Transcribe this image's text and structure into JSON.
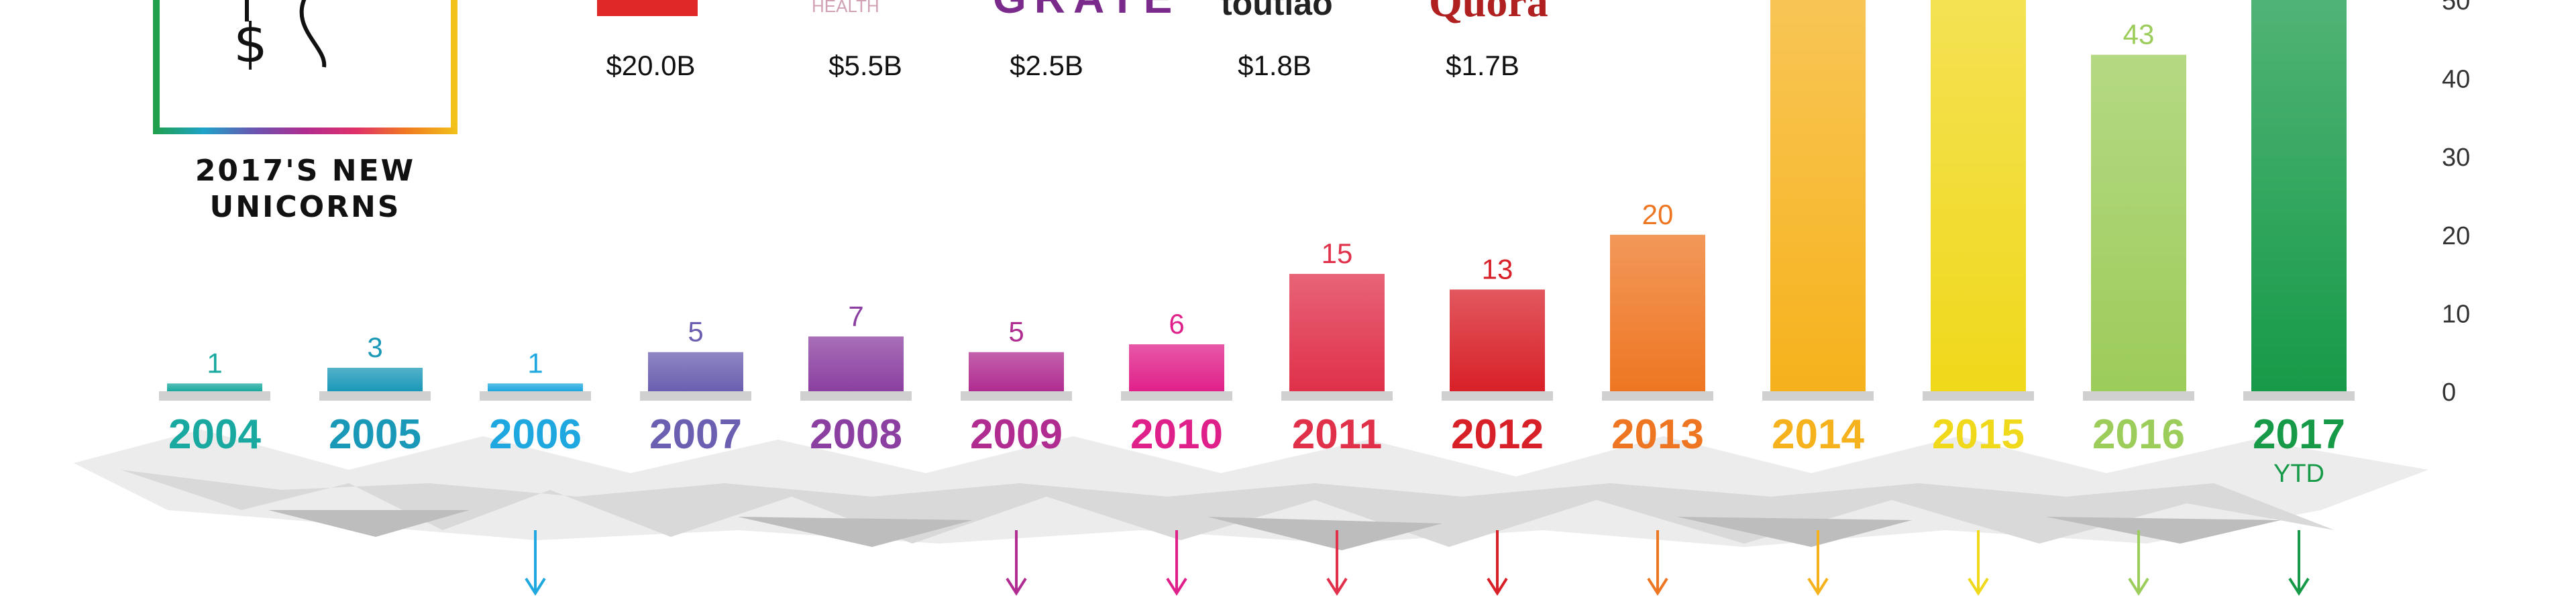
{
  "unicorns": {
    "caption_line1": "2017'S NEW",
    "caption_line2": "UNICORNS",
    "companies": [
      {
        "name": "",
        "valuation": "$20.0B",
        "color": "#e02828"
      },
      {
        "name": "HEALTH",
        "valuation": "$5.5B",
        "color": "#d2a0b4"
      },
      {
        "name": "GRATE",
        "valuation": "$2.5B",
        "color": "#7a2a8a"
      },
      {
        "name": "toutiao",
        "valuation": "$1.8B",
        "color": "#222222"
      },
      {
        "name": "Quora",
        "valuation": "$1.7B",
        "color": "#b02020"
      }
    ]
  },
  "chart_data": {
    "type": "bar",
    "categories": [
      "2004",
      "2005",
      "2006",
      "2007",
      "2008",
      "2009",
      "2010",
      "2011",
      "2012",
      "2013",
      "2014",
      "2015",
      "2016",
      "2017"
    ],
    "values": [
      1,
      3,
      1,
      5,
      7,
      5,
      6,
      15,
      13,
      20,
      50,
      50,
      43,
      50
    ],
    "data_labels": [
      "1",
      "3",
      "1",
      "5",
      "7",
      "5",
      "6",
      "15",
      "13",
      "20",
      "",
      "",
      "43",
      ""
    ],
    "colors": [
      "#1aa9a0",
      "#1a98b8",
      "#1fa8df",
      "#6a5fb0",
      "#8b3fa0",
      "#b02c90",
      "#e0208a",
      "#e0304a",
      "#d82028",
      "#ee7622",
      "#f6b21c",
      "#f0d81a",
      "#9ccc5a",
      "#169a48"
    ],
    "annotation_2017": "YTD",
    "ylim": [
      0,
      50
    ],
    "yticks": [
      "0",
      "10",
      "20",
      "30",
      "40",
      "50"
    ],
    "arrows": [
      "2006",
      "2009",
      "2010",
      "2011",
      "2012",
      "2013",
      "2014",
      "2015",
      "2016",
      "2017"
    ]
  }
}
